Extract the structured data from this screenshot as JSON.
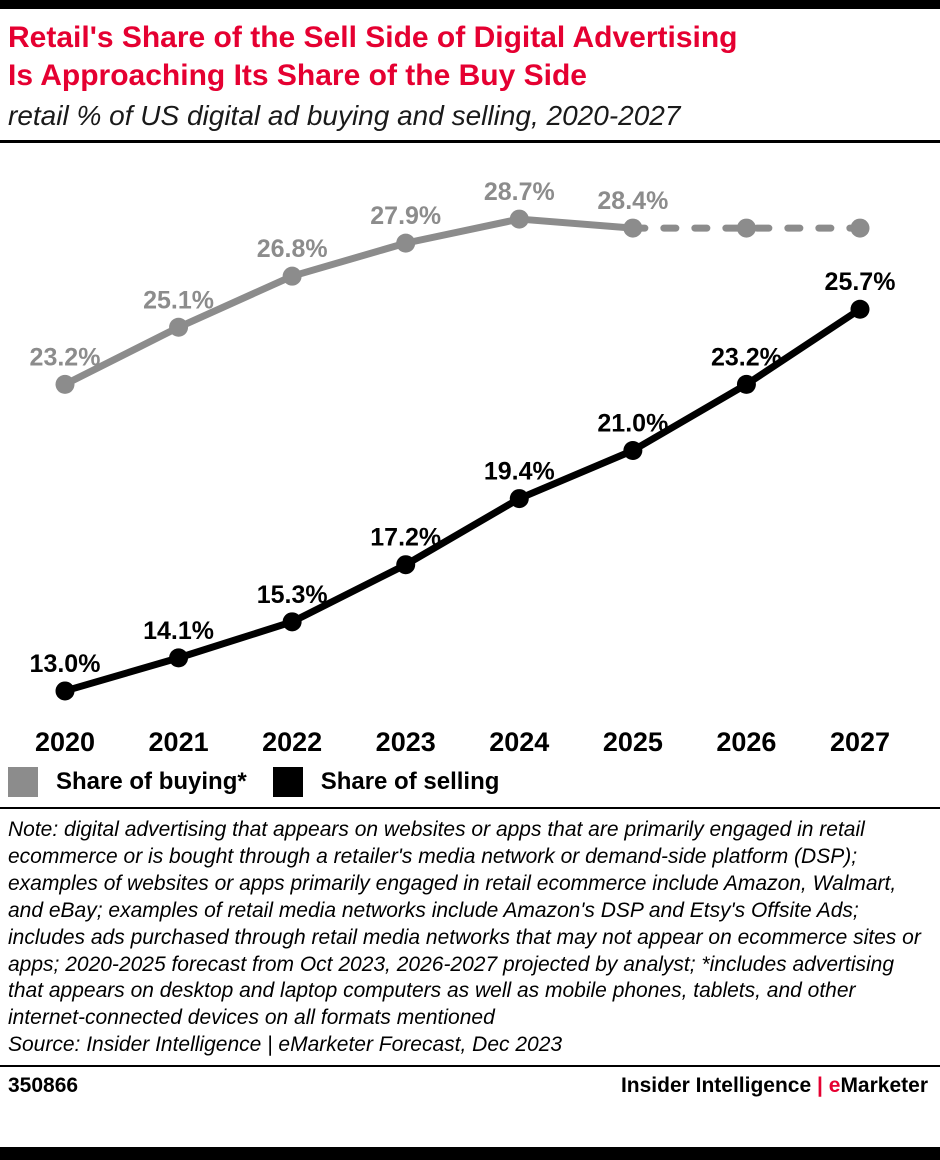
{
  "header": {
    "title_line1": "Retail's Share of the Sell Side of Digital Advertising",
    "title_line2": "Is Approaching Its Share of the Buy Side",
    "subtitle": "retail % of US digital ad buying and selling, 2020-2027"
  },
  "chart_data": {
    "type": "line",
    "categories": [
      "2020",
      "2021",
      "2022",
      "2023",
      "2024",
      "2025",
      "2026",
      "2027"
    ],
    "series": [
      {
        "name": "Share of buying*",
        "color": "#8c8c8c",
        "values": [
          23.2,
          25.1,
          26.8,
          27.9,
          28.7,
          28.4,
          28.4,
          28.4
        ],
        "labels": [
          "23.2%",
          "25.1%",
          "26.8%",
          "27.9%",
          "28.7%",
          "28.4%",
          "",
          ""
        ],
        "dashed_from_index": 5
      },
      {
        "name": "Share of selling",
        "color": "#000000",
        "values": [
          13.0,
          14.1,
          15.3,
          17.2,
          19.4,
          21.0,
          23.2,
          25.7
        ],
        "labels": [
          "13.0%",
          "14.1%",
          "15.3%",
          "17.2%",
          "19.4%",
          "21.0%",
          "23.2%",
          "25.7%"
        ]
      }
    ],
    "ylim": [
      12,
      30
    ],
    "grid": false,
    "legend_position": "bottom-left",
    "accent_color": "#e50031"
  },
  "note": {
    "text": "Note: digital advertising that appears on websites or apps that are primarily engaged in retail ecommerce or is bought through a retailer's media network or demand-side platform (DSP); examples of websites or apps primarily engaged in retail ecommerce include Amazon, Walmart, and eBay; examples of retail media networks include Amazon's DSP and Etsy's Offsite Ads; includes ads purchased through retail media networks that may not appear on ecommerce sites or apps; 2020-2025 forecast from Oct 2023, 2026-2027 projected by analyst; *includes advertising that appears on desktop and laptop computers as well as mobile phones, tablets, and other internet-connected devices on all formats mentioned",
    "source": "Source: Insider Intelligence | eMarketer Forecast, Dec 2023"
  },
  "footer": {
    "id": "350866",
    "brand_left": "Insider Intelligence",
    "separator": "|",
    "brand_e": "e",
    "brand_rest": "Marketer"
  }
}
